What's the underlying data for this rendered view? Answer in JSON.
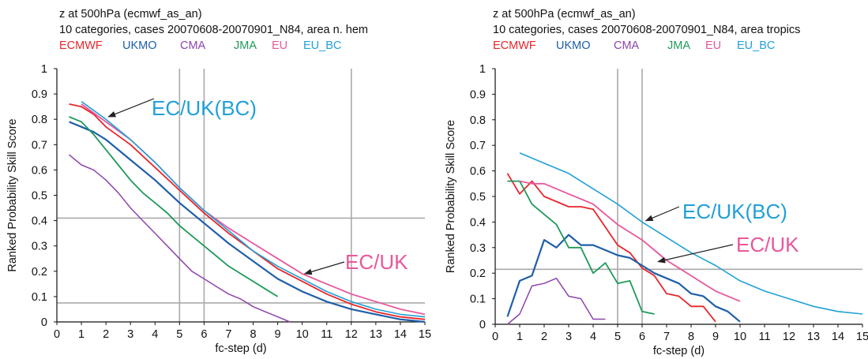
{
  "series_names": [
    "ECMWF",
    "UKMO",
    "CMA",
    "JMA",
    "EU",
    "EU_BC"
  ],
  "colors": {
    "ECMWF": "#e8262b",
    "UKMO": "#1f5fa8",
    "CMA": "#8e44ad",
    "JMA": "#1f9a5a",
    "EU": "#e8589b",
    "EU_BC": "#21a0d8",
    "grid": "#aaaaaa"
  },
  "chart_data": [
    {
      "type": "line",
      "title_line1": "z at 500hPa (ecmwf_as_an)",
      "title_line2": "10 categories, cases 20070608-20070901_N84, area n. hem",
      "xlabel": "fc-step (d)",
      "ylabel": "Ranked Probability Skill Score",
      "xlim": [
        0,
        15
      ],
      "ylim": [
        0,
        1
      ],
      "xticks": [
        "0",
        "1",
        "2",
        "3",
        "4",
        "5",
        "6",
        "7",
        "8",
        "9",
        "10",
        "11",
        "12",
        "13",
        "14",
        "15"
      ],
      "yticks": [
        "0",
        "0.1",
        "0.2",
        "0.3",
        "0.4",
        "0.5",
        "0.6",
        "0.7",
        "0.8",
        "0.9",
        "1"
      ],
      "ref_vlines": [
        5,
        6,
        12
      ],
      "ref_hlines": [
        0.41,
        0.075
      ],
      "series": [
        {
          "name": "ECMWF",
          "x": [
            0.5,
            1,
            1.5,
            2,
            3,
            4,
            5,
            6,
            7,
            8,
            9,
            10,
            11,
            12,
            13,
            14,
            15
          ],
          "y": [
            0.86,
            0.85,
            0.82,
            0.77,
            0.7,
            0.61,
            0.52,
            0.43,
            0.35,
            0.28,
            0.21,
            0.16,
            0.11,
            0.07,
            0.04,
            0.02,
            0.01
          ]
        },
        {
          "name": "UKMO",
          "x": [
            0.5,
            1,
            1.5,
            2,
            3,
            4,
            5,
            6,
            7,
            8,
            9,
            10,
            11,
            12,
            13,
            14,
            15
          ],
          "y": [
            0.79,
            0.77,
            0.75,
            0.72,
            0.64,
            0.56,
            0.47,
            0.39,
            0.31,
            0.24,
            0.17,
            0.12,
            0.08,
            0.05,
            0.03,
            0.01,
            0.0
          ]
        },
        {
          "name": "CMA",
          "x": [
            0.5,
            1,
            1.5,
            2,
            2.5,
            3,
            3.5,
            4,
            4.5,
            5,
            5.5,
            6,
            6.5,
            7,
            7.5,
            8,
            8.5,
            9,
            9.5
          ],
          "y": [
            0.66,
            0.62,
            0.6,
            0.56,
            0.51,
            0.45,
            0.4,
            0.35,
            0.3,
            0.25,
            0.2,
            0.17,
            0.14,
            0.11,
            0.09,
            0.06,
            0.04,
            0.02,
            0.0
          ]
        },
        {
          "name": "JMA",
          "x": [
            0.5,
            1,
            1.5,
            2,
            2.5,
            3,
            3.5,
            4,
            4.5,
            5,
            5.5,
            6,
            6.5,
            7,
            7.5,
            8,
            8.5,
            9
          ],
          "y": [
            0.81,
            0.79,
            0.74,
            0.68,
            0.62,
            0.56,
            0.51,
            0.47,
            0.43,
            0.38,
            0.34,
            0.3,
            0.26,
            0.22,
            0.19,
            0.16,
            0.13,
            0.1
          ]
        },
        {
          "name": "EU",
          "x": [
            1,
            2,
            3,
            4,
            5,
            6,
            7,
            8,
            9,
            10,
            11,
            12,
            13,
            14,
            15
          ],
          "y": [
            0.86,
            0.79,
            0.72,
            0.63,
            0.53,
            0.44,
            0.37,
            0.31,
            0.25,
            0.19,
            0.15,
            0.11,
            0.08,
            0.05,
            0.03
          ]
        },
        {
          "name": "EU_BC",
          "x": [
            1,
            2,
            3,
            4,
            5,
            6,
            7,
            8,
            9,
            10,
            11,
            12,
            13,
            14,
            15
          ],
          "y": [
            0.87,
            0.8,
            0.72,
            0.63,
            0.53,
            0.44,
            0.36,
            0.28,
            0.22,
            0.17,
            0.12,
            0.08,
            0.05,
            0.03,
            0.02
          ]
        }
      ],
      "annotations": [
        {
          "text": "EC/UK(BC)",
          "series": "EU_BC",
          "arrow_to": [
            2.1,
            0.81
          ]
        },
        {
          "text": "EC/UK",
          "series": "EU",
          "arrow_to": [
            10.1,
            0.19
          ]
        }
      ]
    },
    {
      "type": "line",
      "title_line1": "z at 500hPa (ecmwf_as_an)",
      "title_line2": "10 categories, cases 20070608-20070901_N84, area tropics",
      "xlabel": "fc-step (d)",
      "ylabel": "Ranked Probability Skill Score",
      "xlim": [
        0,
        15
      ],
      "ylim": [
        0,
        1
      ],
      "xticks": [
        "0",
        "1",
        "2",
        "3",
        "4",
        "5",
        "6",
        "7",
        "8",
        "9",
        "10",
        "11",
        "12",
        "13",
        "14",
        "15"
      ],
      "yticks": [
        "0",
        "0.1",
        "0.2",
        "0.3",
        "0.4",
        "0.5",
        "0.6",
        "0.7",
        "0.8",
        "0.9",
        "1"
      ],
      "ref_vlines": [
        5,
        6
      ],
      "ref_hlines": [
        0.215
      ],
      "series": [
        {
          "name": "ECMWF",
          "x": [
            0.5,
            1,
            1.5,
            2,
            2.5,
            3,
            3.5,
            4,
            4.5,
            5,
            5.5,
            6,
            6.5,
            7,
            7.5,
            8,
            8.5,
            9
          ],
          "y": [
            0.59,
            0.51,
            0.56,
            0.5,
            0.48,
            0.46,
            0.46,
            0.45,
            0.38,
            0.31,
            0.28,
            0.22,
            0.19,
            0.12,
            0.11,
            0.07,
            0.07,
            0.01
          ]
        },
        {
          "name": "UKMO",
          "x": [
            0.5,
            1,
            1.5,
            2,
            2.5,
            3,
            3.5,
            4,
            4.5,
            5,
            5.5,
            6,
            6.5,
            7,
            7.5,
            8,
            8.5,
            9,
            9.5,
            10
          ],
          "y": [
            0.03,
            0.17,
            0.19,
            0.33,
            0.3,
            0.35,
            0.31,
            0.31,
            0.29,
            0.27,
            0.26,
            0.23,
            0.2,
            0.18,
            0.16,
            0.12,
            0.11,
            0.07,
            0.05,
            0.01
          ]
        },
        {
          "name": "CMA",
          "x": [
            0.5,
            1,
            1.5,
            2,
            2.5,
            3,
            3.5,
            4,
            4.5
          ],
          "y": [
            0.0,
            0.04,
            0.15,
            0.16,
            0.18,
            0.11,
            0.1,
            0.02,
            0.02
          ]
        },
        {
          "name": "JMA",
          "x": [
            0.5,
            1,
            1.5,
            2,
            2.5,
            3,
            3.5,
            4,
            4.5,
            5,
            5.5,
            6,
            6.5
          ],
          "y": [
            0.56,
            0.56,
            0.47,
            0.43,
            0.39,
            0.3,
            0.3,
            0.2,
            0.24,
            0.16,
            0.17,
            0.05,
            0.04
          ]
        },
        {
          "name": "EU",
          "x": [
            1,
            1.5,
            2,
            2.5,
            3,
            3.5,
            4,
            4.5,
            5,
            5.5,
            6,
            6.5,
            7,
            7.5,
            8,
            8.5,
            9,
            9.5,
            10
          ],
          "y": [
            0.56,
            0.55,
            0.55,
            0.53,
            0.51,
            0.49,
            0.47,
            0.43,
            0.39,
            0.36,
            0.33,
            0.29,
            0.25,
            0.22,
            0.19,
            0.16,
            0.13,
            0.11,
            0.09
          ]
        },
        {
          "name": "EU_BC",
          "x": [
            1,
            2,
            3,
            4,
            5,
            6,
            7,
            8,
            9,
            10,
            11,
            12,
            13,
            14,
            15
          ],
          "y": [
            0.67,
            0.63,
            0.59,
            0.53,
            0.47,
            0.4,
            0.34,
            0.28,
            0.23,
            0.17,
            0.13,
            0.1,
            0.07,
            0.05,
            0.04
          ]
        }
      ],
      "annotations": [
        {
          "text": "EC/UK(BC)",
          "series": "EU_BC",
          "arrow_to": [
            6.15,
            0.405
          ]
        },
        {
          "text": "EC/UK",
          "series": "EU",
          "arrow_to": [
            6.65,
            0.245
          ]
        }
      ]
    }
  ]
}
